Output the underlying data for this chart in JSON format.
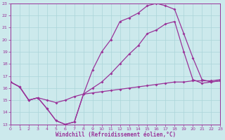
{
  "xlabel": "Windchill (Refroidissement éolien,°C)",
  "xlim": [
    0,
    23
  ],
  "ylim": [
    13,
    23
  ],
  "xticks": [
    0,
    1,
    2,
    3,
    4,
    5,
    6,
    7,
    8,
    9,
    10,
    11,
    12,
    13,
    14,
    15,
    16,
    17,
    18,
    19,
    20,
    21,
    22,
    23
  ],
  "yticks": [
    13,
    14,
    15,
    16,
    17,
    18,
    19,
    20,
    21,
    22,
    23
  ],
  "background_color": "#cce9ec",
  "grid_color": "#aad4d8",
  "line_color": "#993399",
  "line1_x": [
    0,
    1,
    2,
    3,
    4,
    5,
    6,
    7,
    8,
    9,
    10,
    11,
    12,
    13,
    14,
    15,
    16,
    17,
    18,
    19,
    20,
    21,
    22,
    23
  ],
  "line1_y": [
    16.5,
    16.1,
    15.0,
    15.2,
    14.3,
    13.3,
    13.0,
    13.2,
    15.5,
    17.5,
    19.0,
    20.0,
    21.5,
    21.8,
    22.2,
    22.8,
    23.0,
    22.8,
    22.5,
    20.5,
    18.5,
    16.7,
    16.5,
    16.6
  ],
  "line2_x": [
    0,
    1,
    2,
    3,
    4,
    5,
    6,
    7,
    8,
    9,
    10,
    11,
    12,
    13,
    14,
    15,
    16,
    17,
    18,
    19,
    20,
    21,
    22,
    23
  ],
  "line2_y": [
    16.5,
    16.1,
    15.0,
    15.2,
    14.3,
    13.3,
    13.0,
    13.2,
    15.5,
    16.0,
    16.5,
    17.2,
    18.0,
    18.8,
    19.5,
    20.5,
    20.8,
    21.3,
    21.5,
    19.0,
    16.7,
    16.4,
    16.5,
    16.6
  ],
  "line3_x": [
    0,
    1,
    2,
    3,
    4,
    5,
    6,
    7,
    8,
    9,
    10,
    11,
    12,
    13,
    14,
    15,
    16,
    17,
    18,
    19,
    20,
    21,
    22,
    23
  ],
  "line3_y": [
    16.5,
    16.1,
    15.0,
    15.2,
    15.0,
    14.8,
    15.0,
    15.3,
    15.5,
    15.6,
    15.7,
    15.8,
    15.9,
    16.0,
    16.1,
    16.2,
    16.3,
    16.4,
    16.5,
    16.5,
    16.6,
    16.6,
    16.6,
    16.7
  ]
}
